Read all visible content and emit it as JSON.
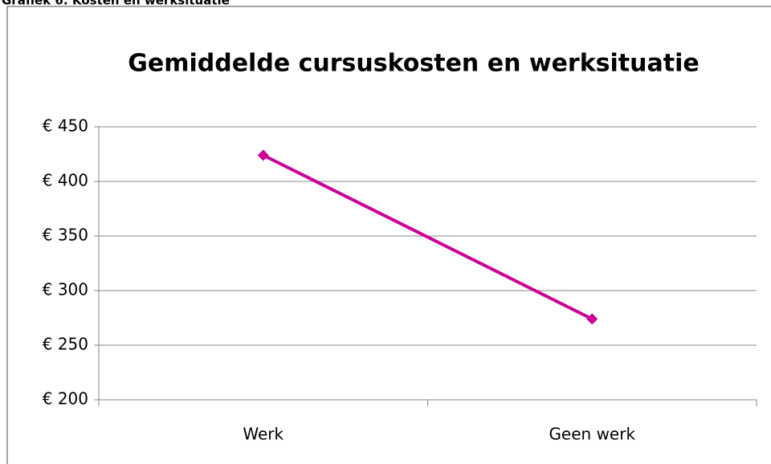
{
  "caption": "Grafiek 6: Kosten en werksituatie",
  "chart_data": {
    "type": "line",
    "title": "Gemiddelde cursuskosten en werksituatie",
    "categories": [
      "Werk",
      "Geen werk"
    ],
    "series": [
      {
        "name": "Gemiddelde cursuskosten",
        "color": "#cc0099",
        "values": [
          424,
          274
        ]
      }
    ],
    "ylim": [
      200,
      450
    ],
    "yticks": [
      {
        "value": 200,
        "label": "€ 200"
      },
      {
        "value": 250,
        "label": "€ 250"
      },
      {
        "value": 300,
        "label": "€ 300"
      },
      {
        "value": 350,
        "label": "€ 350"
      },
      {
        "value": 400,
        "label": "€ 400"
      },
      {
        "value": 450,
        "label": "€ 450"
      }
    ],
    "grid": true
  }
}
